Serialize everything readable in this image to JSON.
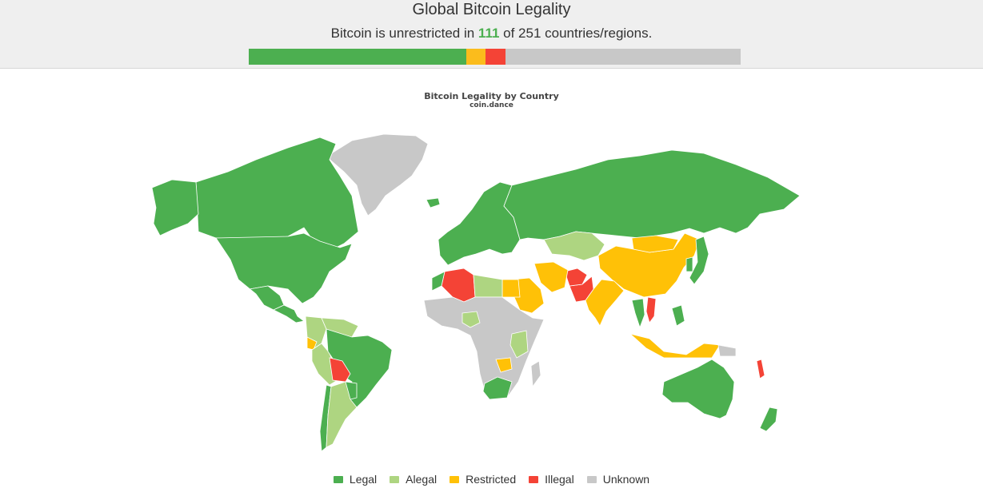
{
  "header": {
    "title": "Global Bitcoin Legality",
    "subtitle_prefix": "Bitcoin is unrestricted in ",
    "count": "111",
    "subtitle_suffix": " of 251 countries/regions."
  },
  "chart_data": {
    "type": "choropleth-map",
    "title": "Bitcoin Legality by Country",
    "subtitle": "coin.dance",
    "total": 251,
    "unrestricted": 111,
    "summary_bar": [
      {
        "category": "Legal",
        "count": 111,
        "color": "#4caf50"
      },
      {
        "category": "Restricted",
        "count": 10,
        "color": "#fbbc1c"
      },
      {
        "category": "Illegal",
        "count": 10,
        "color": "#f44336"
      },
      {
        "category": "Unknown",
        "count": 120,
        "color": "#c8c8c8"
      }
    ],
    "legend": [
      {
        "label": "Legal",
        "color": "#4caf50"
      },
      {
        "label": "Alegal",
        "color": "#aed581"
      },
      {
        "label": "Restricted",
        "color": "#ffc107"
      },
      {
        "label": "Illegal",
        "color": "#f44336"
      },
      {
        "label": "Unknown",
        "color": "#c8c8c8"
      }
    ],
    "regions": [
      {
        "name": "Greenland",
        "status": "Unknown"
      },
      {
        "name": "Canada",
        "status": "Legal"
      },
      {
        "name": "Alaska",
        "status": "Legal"
      },
      {
        "name": "United States",
        "status": "Legal"
      },
      {
        "name": "Mexico",
        "status": "Legal"
      },
      {
        "name": "Central America",
        "status": "Legal"
      },
      {
        "name": "Colombia",
        "status": "Alegal"
      },
      {
        "name": "Venezuela",
        "status": "Alegal"
      },
      {
        "name": "Ecuador",
        "status": "Restricted"
      },
      {
        "name": "Peru",
        "status": "Alegal"
      },
      {
        "name": "Brazil",
        "status": "Legal"
      },
      {
        "name": "Bolivia",
        "status": "Illegal"
      },
      {
        "name": "Paraguay",
        "status": "Legal"
      },
      {
        "name": "Chile",
        "status": "Legal"
      },
      {
        "name": "Argentina",
        "status": "Alegal"
      },
      {
        "name": "Europe",
        "status": "Legal"
      },
      {
        "name": "Iceland",
        "status": "Legal"
      },
      {
        "name": "Russia",
        "status": "Legal"
      },
      {
        "name": "Kazakhstan",
        "status": "Alegal"
      },
      {
        "name": "China",
        "status": "Restricted"
      },
      {
        "name": "Mongolia",
        "status": "Restricted"
      },
      {
        "name": "India",
        "status": "Restricted"
      },
      {
        "name": "Pakistan",
        "status": "Illegal"
      },
      {
        "name": "Afghanistan",
        "status": "Illegal"
      },
      {
        "name": "Iran",
        "status": "Restricted"
      },
      {
        "name": "Saudi Arabia",
        "status": "Restricted"
      },
      {
        "name": "Egypt",
        "status": "Restricted"
      },
      {
        "name": "Algeria",
        "status": "Illegal"
      },
      {
        "name": "Morocco",
        "status": "Legal"
      },
      {
        "name": "Libya",
        "status": "Alegal"
      },
      {
        "name": "Africa (other)",
        "status": "Unknown"
      },
      {
        "name": "Nigeria",
        "status": "Alegal"
      },
      {
        "name": "Kenya",
        "status": "Alegal"
      },
      {
        "name": "South Africa",
        "status": "Legal"
      },
      {
        "name": "Zambia",
        "status": "Restricted"
      },
      {
        "name": "Madagascar",
        "status": "Unknown"
      },
      {
        "name": "Indonesia",
        "status": "Restricted"
      },
      {
        "name": "Vietnam",
        "status": "Illegal"
      },
      {
        "name": "Thailand",
        "status": "Legal"
      },
      {
        "name": "Philippines",
        "status": "Legal"
      },
      {
        "name": "Japan",
        "status": "Legal"
      },
      {
        "name": "Korea",
        "status": "Legal"
      },
      {
        "name": "Australia",
        "status": "Legal"
      },
      {
        "name": "New Zealand",
        "status": "Legal"
      },
      {
        "name": "Papua New Guinea",
        "status": "Unknown"
      },
      {
        "name": "Vanuatu",
        "status": "Illegal"
      }
    ]
  }
}
